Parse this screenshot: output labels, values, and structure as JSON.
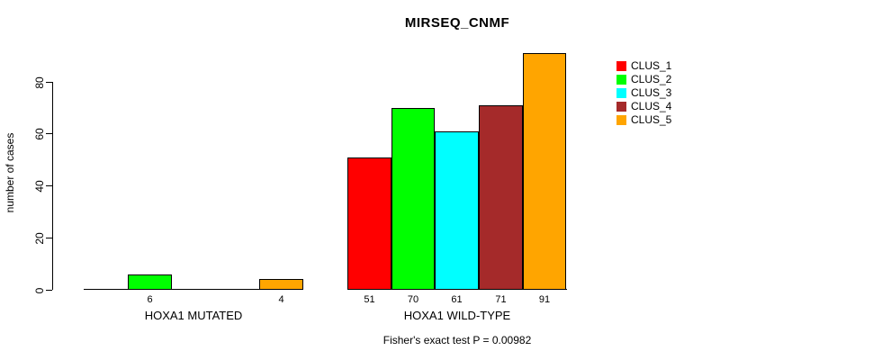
{
  "chart_data": {
    "type": "bar",
    "title": "MIRSEQ_CNMF",
    "ylabel": "number of cases",
    "xlabel": "",
    "yticks": [
      0,
      20,
      40,
      60,
      80
    ],
    "ylim": [
      0,
      91
    ],
    "grid": false,
    "legend_position": "right-outside",
    "show_bar_values": true,
    "bar_values_hidden_when_zero": true,
    "bar_border_color": "#000000",
    "background": "#FFFFFF",
    "categories": [
      "HOXA1 MUTATED",
      "HOXA1 WILD-TYPE"
    ],
    "series": [
      {
        "name": "CLUS_1",
        "color": "#FF0000",
        "values": [
          0,
          51
        ]
      },
      {
        "name": "CLUS_2",
        "color": "#00FF00",
        "values": [
          6,
          70
        ]
      },
      {
        "name": "CLUS_3",
        "color": "#00FFFF",
        "values": [
          0,
          61
        ]
      },
      {
        "name": "CLUS_4",
        "color": "#A52A2A",
        "values": [
          0,
          71
        ]
      },
      {
        "name": "CLUS_5",
        "color": "#FFA500",
        "values": [
          4,
          91
        ]
      }
    ],
    "footnote": "Fisher's exact test P = 0.00982"
  }
}
